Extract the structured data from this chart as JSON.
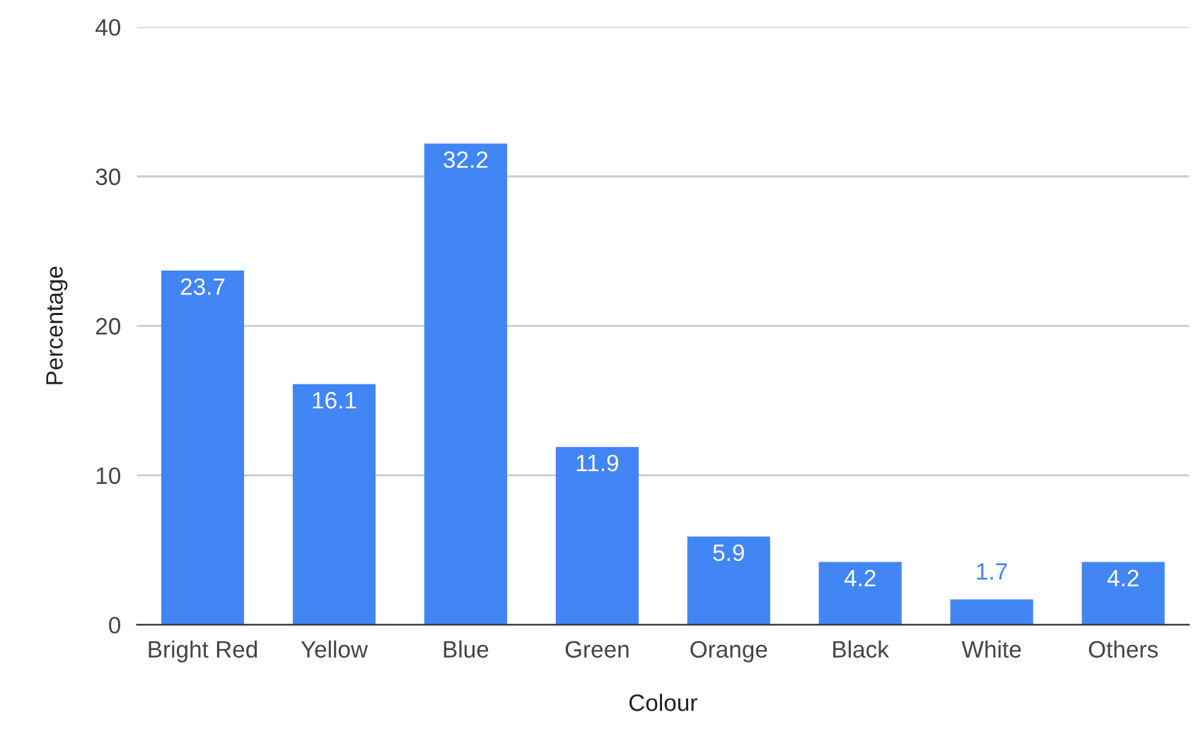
{
  "chart_data": {
    "type": "bar",
    "xlabel": "Colour",
    "ylabel": "Percentage",
    "categories": [
      "Bright Red",
      "Yellow",
      "Blue",
      "Green",
      "Orange",
      "Black",
      "White",
      "Others"
    ],
    "values": [
      23.7,
      16.1,
      32.2,
      11.9,
      5.9,
      4.2,
      1.7,
      4.2
    ],
    "color": "#4285f4",
    "ylim": [
      0,
      40
    ],
    "yticks": [
      0,
      10,
      20,
      30,
      40
    ],
    "grid": "y",
    "data_labels": true
  }
}
